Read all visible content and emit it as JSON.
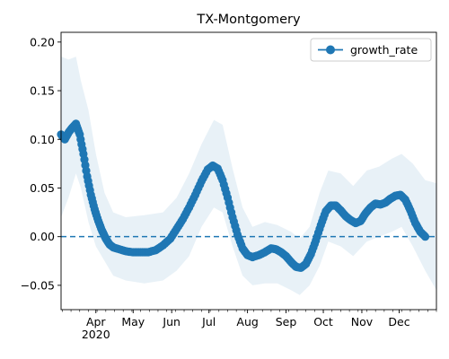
{
  "chart_data": {
    "type": "line",
    "title": "TX-Montgomery",
    "xlabel": "",
    "ylabel": "",
    "xlim": [
      "2020-03-04",
      "2020-12-31"
    ],
    "ylim": [
      -0.075,
      0.21
    ],
    "grid": false,
    "legend": {
      "location": "upper right",
      "entries": [
        "growth_rate"
      ]
    },
    "x_ticks": [
      {
        "date": "2020-04-01",
        "label": "Apr"
      },
      {
        "date": "2020-05-01",
        "label": "May"
      },
      {
        "date": "2020-06-01",
        "label": "Jun"
      },
      {
        "date": "2020-07-01",
        "label": "Jul"
      },
      {
        "date": "2020-08-01",
        "label": "Aug"
      },
      {
        "date": "2020-09-01",
        "label": "Sep"
      },
      {
        "date": "2020-10-01",
        "label": "Oct"
      },
      {
        "date": "2020-11-01",
        "label": "Nov"
      },
      {
        "date": "2020-12-01",
        "label": "Dec"
      }
    ],
    "x_year_label": "2020",
    "y_ticks": [
      -0.05,
      0.0,
      0.05,
      0.1,
      0.15,
      0.2
    ],
    "y_tick_labels": [
      "−0.05",
      "0.00",
      "0.05",
      "0.10",
      "0.15",
      "0.20"
    ],
    "reference_line": {
      "y": 0,
      "style": "dashed"
    },
    "series": [
      {
        "name": "growth_rate",
        "color": "#1f77b4",
        "marker": "circle",
        "points": [
          [
            "2020-03-04",
            0.105
          ],
          [
            "2020-03-07",
            0.1
          ],
          [
            "2020-03-10",
            0.107
          ],
          [
            "2020-03-13",
            0.112
          ],
          [
            "2020-03-16",
            0.116
          ],
          [
            "2020-03-19",
            0.105
          ],
          [
            "2020-03-22",
            0.085
          ],
          [
            "2020-03-25",
            0.062
          ],
          [
            "2020-03-28",
            0.043
          ],
          [
            "2020-03-31",
            0.028
          ],
          [
            "2020-04-03",
            0.016
          ],
          [
            "2020-04-06",
            0.006
          ],
          [
            "2020-04-09",
            -0.002
          ],
          [
            "2020-04-12",
            -0.008
          ],
          [
            "2020-04-15",
            -0.011
          ],
          [
            "2020-04-20",
            -0.013
          ],
          [
            "2020-04-25",
            -0.015
          ],
          [
            "2020-05-01",
            -0.016
          ],
          [
            "2020-05-07",
            -0.016
          ],
          [
            "2020-05-13",
            -0.016
          ],
          [
            "2020-05-19",
            -0.014
          ],
          [
            "2020-05-25",
            -0.009
          ],
          [
            "2020-05-31",
            -0.002
          ],
          [
            "2020-06-05",
            0.008
          ],
          [
            "2020-06-10",
            0.018
          ],
          [
            "2020-06-15",
            0.03
          ],
          [
            "2020-06-20",
            0.043
          ],
          [
            "2020-06-25",
            0.057
          ],
          [
            "2020-06-30",
            0.069
          ],
          [
            "2020-07-04",
            0.073
          ],
          [
            "2020-07-08",
            0.07
          ],
          [
            "2020-07-12",
            0.058
          ],
          [
            "2020-07-16",
            0.04
          ],
          [
            "2020-07-20",
            0.02
          ],
          [
            "2020-07-24",
            0.002
          ],
          [
            "2020-07-28",
            -0.012
          ],
          [
            "2020-08-01",
            -0.019
          ],
          [
            "2020-08-05",
            -0.021
          ],
          [
            "2020-08-10",
            -0.019
          ],
          [
            "2020-08-15",
            -0.016
          ],
          [
            "2020-08-20",
            -0.012
          ],
          [
            "2020-08-24",
            -0.013
          ],
          [
            "2020-08-28",
            -0.016
          ],
          [
            "2020-09-01",
            -0.02
          ],
          [
            "2020-09-05",
            -0.026
          ],
          [
            "2020-09-09",
            -0.031
          ],
          [
            "2020-09-13",
            -0.032
          ],
          [
            "2020-09-17",
            -0.028
          ],
          [
            "2020-09-21",
            -0.018
          ],
          [
            "2020-09-25",
            -0.004
          ],
          [
            "2020-09-29",
            0.012
          ],
          [
            "2020-10-03",
            0.026
          ],
          [
            "2020-10-07",
            0.032
          ],
          [
            "2020-10-11",
            0.032
          ],
          [
            "2020-10-15",
            0.027
          ],
          [
            "2020-10-19",
            0.021
          ],
          [
            "2020-10-23",
            0.017
          ],
          [
            "2020-10-27",
            0.014
          ],
          [
            "2020-10-31",
            0.016
          ],
          [
            "2020-11-04",
            0.024
          ],
          [
            "2020-11-08",
            0.03
          ],
          [
            "2020-11-12",
            0.034
          ],
          [
            "2020-11-16",
            0.033
          ],
          [
            "2020-11-20",
            0.035
          ],
          [
            "2020-11-24",
            0.039
          ],
          [
            "2020-11-28",
            0.042
          ],
          [
            "2020-12-02",
            0.043
          ],
          [
            "2020-12-06",
            0.038
          ],
          [
            "2020-12-10",
            0.027
          ],
          [
            "2020-12-14",
            0.014
          ],
          [
            "2020-12-18",
            0.005
          ],
          [
            "2020-12-22",
            0.0
          ]
        ]
      }
    ],
    "band": {
      "color": "#1f77b4",
      "opacity": 0.1,
      "points": [
        [
          "2020-03-04",
          0.02,
          0.185
        ],
        [
          "2020-03-10",
          0.04,
          0.182
        ],
        [
          "2020-03-16",
          0.065,
          0.185
        ],
        [
          "2020-03-20",
          0.05,
          0.16
        ],
        [
          "2020-03-26",
          0.015,
          0.13
        ],
        [
          "2020-04-01",
          -0.01,
          0.085
        ],
        [
          "2020-04-08",
          -0.025,
          0.045
        ],
        [
          "2020-04-15",
          -0.04,
          0.025
        ],
        [
          "2020-04-25",
          -0.045,
          0.02
        ],
        [
          "2020-05-10",
          -0.048,
          0.022
        ],
        [
          "2020-05-25",
          -0.045,
          0.025
        ],
        [
          "2020-06-05",
          -0.035,
          0.04
        ],
        [
          "2020-06-15",
          -0.02,
          0.065
        ],
        [
          "2020-06-25",
          0.01,
          0.095
        ],
        [
          "2020-07-05",
          0.03,
          0.12
        ],
        [
          "2020-07-12",
          0.025,
          0.115
        ],
        [
          "2020-07-20",
          -0.01,
          0.07
        ],
        [
          "2020-07-28",
          -0.04,
          0.03
        ],
        [
          "2020-08-05",
          -0.05,
          0.01
        ],
        [
          "2020-08-15",
          -0.048,
          0.015
        ],
        [
          "2020-08-25",
          -0.048,
          0.012
        ],
        [
          "2020-09-05",
          -0.055,
          0.005
        ],
        [
          "2020-09-12",
          -0.06,
          -0.002
        ],
        [
          "2020-09-20",
          -0.05,
          0.01
        ],
        [
          "2020-09-28",
          -0.03,
          0.045
        ],
        [
          "2020-10-05",
          -0.005,
          0.068
        ],
        [
          "2020-10-15",
          -0.01,
          0.065
        ],
        [
          "2020-10-25",
          -0.02,
          0.052
        ],
        [
          "2020-11-05",
          -0.005,
          0.068
        ],
        [
          "2020-11-15",
          0.0,
          0.072
        ],
        [
          "2020-11-25",
          0.005,
          0.08
        ],
        [
          "2020-12-03",
          0.01,
          0.085
        ],
        [
          "2020-12-12",
          -0.01,
          0.075
        ],
        [
          "2020-12-22",
          -0.035,
          0.058
        ],
        [
          "2020-12-31",
          -0.055,
          0.055
        ]
      ]
    }
  }
}
